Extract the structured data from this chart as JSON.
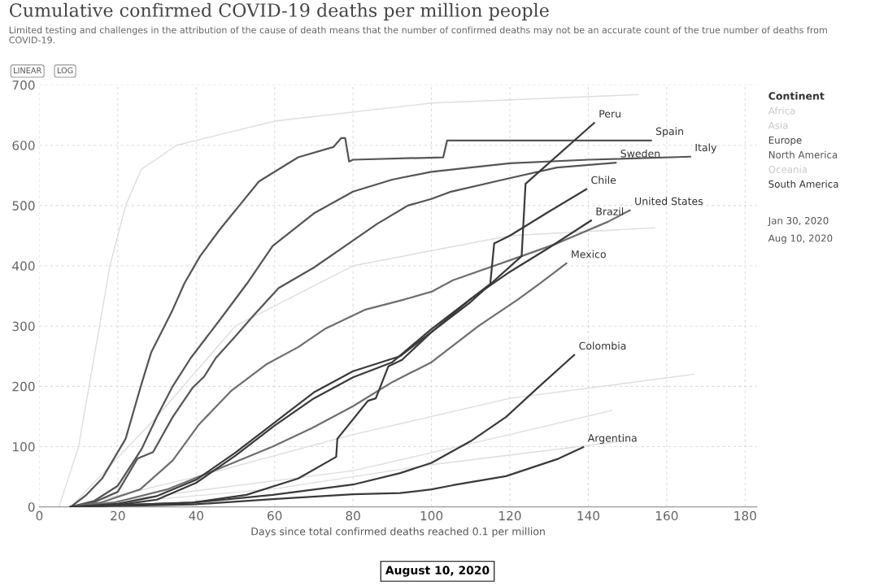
{
  "chart_data": {
    "type": "line",
    "title": "Cumulative confirmed COVID-19 deaths per million people",
    "subtitle": "Limited testing and challenges in the attribution of the cause of death means that the number of confirmed deaths may not be an accurate count of the true number of deaths from COVID-19.",
    "xlabel": "Days since total confirmed deaths reached 0.1 per million",
    "legend_title": "Continent",
    "annotations": [
      "Africa",
      "Asia",
      "Europe",
      "North America",
      "Oceania",
      "South America",
      "Jan 30, 2020",
      "Aug 10, 2020",
      "LINEAR",
      "LOG",
      "August 10, 2020"
    ],
    "xlim": [
      0,
      183
    ],
    "xticks": [
      0,
      20,
      40,
      60,
      80,
      100,
      120,
      140,
      160,
      180
    ],
    "ylim": [
      0,
      700
    ],
    "yticks": [
      0,
      100,
      200,
      300,
      400,
      500,
      600,
      700
    ],
    "grid": true,
    "marker": "none",
    "line_style": "solid",
    "series": [
      {
        "color": "#dddddd",
        "x": [
          5,
          10,
          14,
          18,
          22,
          26,
          35,
          60,
          100,
          152.6
        ],
        "values": [
          0,
          100,
          250,
          400,
          500,
          560,
          600,
          640,
          670,
          684
        ]
      },
      {
        "color": "#dddddd",
        "x": [
          8,
          30,
          50,
          80,
          120,
          157
        ],
        "values": [
          0,
          150,
          300,
          400,
          450,
          463
        ]
      },
      {
        "color": "#dddddd",
        "x": [
          8,
          40,
          80,
          120,
          167
        ],
        "values": [
          0,
          50,
          120,
          180,
          220
        ]
      },
      {
        "color": "#dddddd",
        "x": [
          8,
          60,
          100,
          150
        ],
        "values": [
          0,
          30,
          70,
          110
        ]
      },
      {
        "color": "#dddddd",
        "x": [
          8,
          80,
          120,
          146
        ],
        "values": [
          0,
          60,
          120,
          160
        ]
      },
      {
        "name": "Spain",
        "color": "#555555",
        "x": [
          8,
          12,
          16,
          22,
          26,
          28.5,
          34,
          37,
          41,
          46,
          51,
          56,
          66,
          75,
          77,
          78,
          79,
          80,
          103,
          104,
          156
        ],
        "values": [
          0,
          20,
          47,
          113,
          203,
          256,
          327,
          371,
          416,
          460,
          500,
          540,
          580,
          597,
          612,
          612,
          573,
          576,
          580,
          608,
          608
        ]
      },
      {
        "name": "Italy",
        "color": "#555555",
        "x": [
          8,
          14,
          20,
          26,
          30,
          34,
          38.6,
          46,
          53,
          59.5,
          70,
          80,
          90,
          100,
          120,
          140,
          166
        ],
        "values": [
          0,
          10,
          35,
          95,
          150,
          200,
          247,
          310,
          371,
          433,
          487,
          523,
          543,
          556,
          570,
          576,
          581
        ]
      },
      {
        "name": "Sweden",
        "color": "#555555",
        "x": [
          8,
          14,
          20,
          25,
          29,
          34,
          39,
          42,
          45,
          50,
          54,
          61,
          70,
          78,
          86,
          94,
          100,
          105,
          119,
          132,
          147
        ],
        "values": [
          0,
          8,
          25,
          80,
          91,
          149,
          197,
          216,
          247,
          283,
          313,
          363,
          397,
          433,
          469,
          500,
          511,
          523,
          544,
          563,
          571
        ]
      },
      {
        "name": "United States",
        "color": "#6e6e6e",
        "x": [
          8,
          15.6,
          25.7,
          34,
          40.6,
          49,
          58,
          66,
          73,
          83,
          93,
          100,
          105.5,
          123,
          132,
          145,
          150.6
        ],
        "values": [
          0,
          7,
          29,
          77,
          136,
          193,
          237,
          265,
          296,
          327,
          344,
          357,
          376,
          416,
          437,
          473,
          492
        ]
      },
      {
        "name": "Mexico",
        "color": "#6e6e6e",
        "x": [
          8,
          19,
          32.6,
          46,
          59.5,
          69.6,
          80,
          90,
          100,
          112,
          122,
          127.7,
          134.4
        ],
        "values": [
          0,
          7,
          29,
          64,
          100,
          131,
          167,
          207,
          240,
          300,
          344,
          371,
          404
        ]
      },
      {
        "name": "Peru",
        "color": "#3a3a3a",
        "x": [
          8,
          39,
          52.8,
          66,
          75.7,
          76,
          83.8,
          85.8,
          89,
          92.5,
          100,
          110,
          123,
          124,
          141.5
        ],
        "values": [
          0,
          7,
          20,
          47,
          83,
          113,
          176,
          180,
          233,
          244,
          290,
          340,
          416,
          536,
          637
        ]
      },
      {
        "name": "Chile",
        "color": "#3a3a3a",
        "x": [
          8,
          20,
          30,
          40,
          50,
          60,
          70,
          80,
          90,
          100,
          110,
          115,
          116,
          120,
          130,
          139.5
        ],
        "values": [
          0,
          3,
          12,
          40,
          85,
          135,
          180,
          215,
          240,
          295,
          345,
          370,
          437,
          450,
          490,
          527
        ]
      },
      {
        "name": "Brazil",
        "color": "#3a3a3a",
        "x": [
          8,
          20,
          30,
          40,
          50,
          60,
          70,
          80,
          92,
          100,
          110,
          120,
          130,
          140.7
        ],
        "values": [
          0,
          5,
          18,
          45,
          90,
          140,
          190,
          225,
          250,
          290,
          345,
          390,
          430,
          475
        ]
      },
      {
        "name": "Colombia",
        "color": "#3a3a3a",
        "x": [
          8,
          39,
          59.5,
          80,
          92,
          100,
          110,
          119,
          127,
          136.4
        ],
        "values": [
          0,
          7,
          20,
          37,
          56,
          73,
          109,
          149,
          197,
          252
        ]
      },
      {
        "name": "Argentina",
        "color": "#3a3a3a",
        "x": [
          8,
          39,
          59.5,
          80,
          92,
          100,
          105.5,
          119,
          132.4,
          138.7
        ],
        "values": [
          0,
          4,
          13,
          21,
          23,
          29,
          36,
          51,
          80,
          99
        ]
      }
    ]
  }
}
